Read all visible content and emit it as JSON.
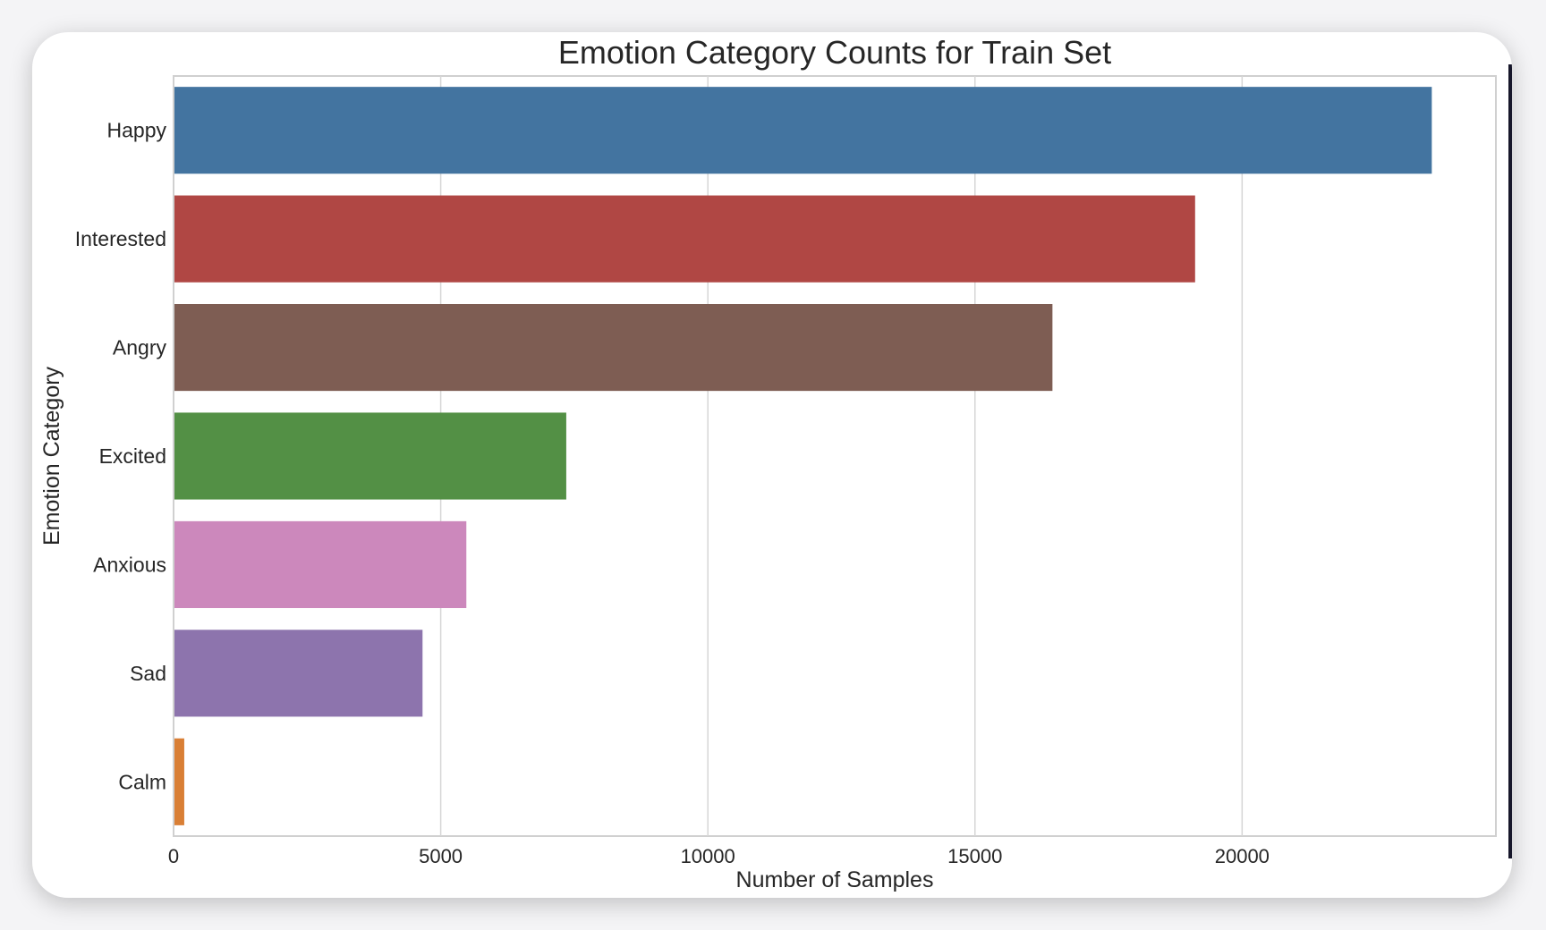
{
  "chart_data": {
    "type": "bar",
    "orientation": "horizontal",
    "title": "Emotion Category Counts for Train Set",
    "xlabel": "Number of Samples",
    "ylabel": "Emotion Category",
    "xlim": [
      0,
      24750
    ],
    "xticks": [
      0,
      5000,
      10000,
      15000,
      20000
    ],
    "grid": true,
    "categories": [
      "Happy",
      "Interested",
      "Angry",
      "Excited",
      "Anxious",
      "Sad",
      "Calm"
    ],
    "values": [
      23550,
      19120,
      16450,
      7350,
      5480,
      4660,
      200
    ],
    "colors": [
      "#4374a0",
      "#b04744",
      "#7e5d53",
      "#539045",
      "#cc88bc",
      "#8d74ad",
      "#d97f35"
    ]
  }
}
